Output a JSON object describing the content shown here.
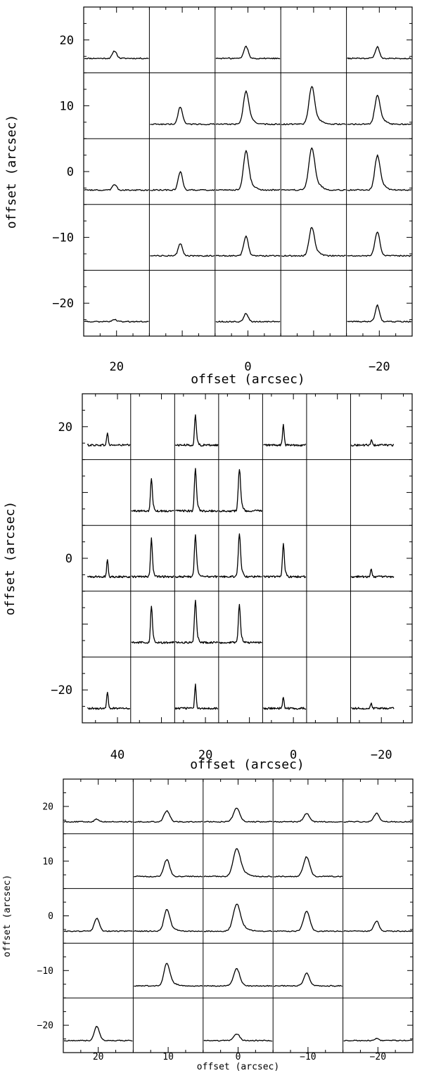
{
  "chart_data": [
    {
      "type": "line",
      "title": "",
      "xlabel": "offset (arcsec)",
      "ylabel": "offset (arcsec)",
      "xlim": [
        25,
        -25
      ],
      "ylim": [
        -25,
        25
      ],
      "xticks": [
        20,
        0,
        -20
      ],
      "yticks": [
        20,
        10,
        0,
        -10,
        -20
      ],
      "col_centers": [
        20,
        10,
        0,
        -10,
        -20
      ],
      "row_centers": [
        20,
        10,
        0,
        -10,
        -20
      ],
      "grid": true,
      "series": [
        {
          "x": 20,
          "y": 20,
          "peak": 0.18,
          "width": 1.3
        },
        {
          "x": 0,
          "y": 20,
          "peak": 0.3,
          "width": 1.3
        },
        {
          "x": -20,
          "y": 20,
          "peak": 0.28,
          "width": 1.3
        },
        {
          "x": 10,
          "y": 10,
          "peak": 0.42,
          "width": 1.4
        },
        {
          "x": 0,
          "y": 10,
          "peak": 0.78,
          "width": 1.6
        },
        {
          "x": -10,
          "y": 10,
          "peak": 0.9,
          "width": 1.7
        },
        {
          "x": -20,
          "y": 10,
          "peak": 0.68,
          "width": 1.6
        },
        {
          "x": 20,
          "y": 0,
          "peak": 0.14,
          "width": 1.2
        },
        {
          "x": 10,
          "y": 0,
          "peak": 0.45,
          "width": 1.3
        },
        {
          "x": 0,
          "y": 0,
          "peak": 0.92,
          "width": 1.6
        },
        {
          "x": -10,
          "y": 0,
          "peak": 1.0,
          "width": 1.8
        },
        {
          "x": -20,
          "y": 0,
          "peak": 0.82,
          "width": 1.6
        },
        {
          "x": 10,
          "y": -10,
          "peak": 0.3,
          "width": 1.3
        },
        {
          "x": 0,
          "y": -10,
          "peak": 0.48,
          "width": 1.4
        },
        {
          "x": -10,
          "y": -10,
          "peak": 0.68,
          "width": 1.6
        },
        {
          "x": -20,
          "y": -10,
          "peak": 0.58,
          "width": 1.5
        },
        {
          "x": 20,
          "y": -20,
          "peak": 0.06,
          "width": 1.2
        },
        {
          "x": 0,
          "y": -20,
          "peak": 0.2,
          "width": 1.3
        },
        {
          "x": -20,
          "y": -20,
          "peak": 0.4,
          "width": 1.3
        }
      ]
    },
    {
      "type": "line",
      "title": "",
      "xlabel": "offset (arcsec)",
      "ylabel": "offset (arcsec)",
      "xlim": [
        48,
        -27
      ],
      "ylim": [
        -25,
        25
      ],
      "xticks": [
        40,
        20,
        0,
        -20
      ],
      "yticks": [
        20,
        0,
        -20
      ],
      "col_centers": [
        42,
        32,
        22,
        12,
        2,
        -8,
        -18
      ],
      "row_centers": [
        20,
        10,
        0,
        -10,
        -20
      ],
      "grid": true,
      "series": [
        {
          "x": 42,
          "y": 20,
          "peak": 0.3,
          "width": 0.7
        },
        {
          "x": 22,
          "y": 20,
          "peak": 0.7,
          "width": 0.8
        },
        {
          "x": 2,
          "y": 20,
          "peak": 0.52,
          "width": 0.7
        },
        {
          "x": -18,
          "y": 20,
          "peak": 0.12,
          "width": 0.7
        },
        {
          "x": 32,
          "y": 10,
          "peak": 0.78,
          "width": 0.8
        },
        {
          "x": 22,
          "y": 10,
          "peak": 1.0,
          "width": 0.9
        },
        {
          "x": 12,
          "y": 10,
          "peak": 1.0,
          "width": 1.0
        },
        {
          "x": 42,
          "y": 0,
          "peak": 0.42,
          "width": 0.7
        },
        {
          "x": 32,
          "y": 0,
          "peak": 0.9,
          "width": 0.8
        },
        {
          "x": 22,
          "y": 0,
          "peak": 1.0,
          "width": 0.9
        },
        {
          "x": 12,
          "y": 0,
          "peak": 1.0,
          "width": 1.0
        },
        {
          "x": 2,
          "y": 0,
          "peak": 0.8,
          "width": 0.8
        },
        {
          "x": -18,
          "y": 0,
          "peak": 0.18,
          "width": 0.7
        },
        {
          "x": 32,
          "y": -10,
          "peak": 0.88,
          "width": 0.8
        },
        {
          "x": 22,
          "y": -10,
          "peak": 1.0,
          "width": 0.9
        },
        {
          "x": 12,
          "y": -10,
          "peak": 0.88,
          "width": 0.9
        },
        {
          "x": 42,
          "y": -20,
          "peak": 0.4,
          "width": 0.7
        },
        {
          "x": 22,
          "y": -20,
          "peak": 0.58,
          "width": 0.7
        },
        {
          "x": 2,
          "y": -20,
          "peak": 0.28,
          "width": 0.7
        },
        {
          "x": -18,
          "y": -20,
          "peak": 0.12,
          "width": 0.7
        }
      ]
    },
    {
      "type": "line",
      "title": "",
      "xlabel": "offset (arcsec)",
      "ylabel": "offset (arcsec)",
      "xlim": [
        25,
        -25
      ],
      "ylim": [
        -25,
        25
      ],
      "xticks": [
        20,
        10,
        0,
        -10,
        -20
      ],
      "yticks": [
        20,
        10,
        0,
        -10,
        -20
      ],
      "col_centers": [
        20,
        10,
        0,
        -10,
        -20
      ],
      "row_centers": [
        20,
        10,
        0,
        -10,
        -20
      ],
      "grid": true,
      "series": [
        {
          "x": 20,
          "y": 20,
          "peak": 0.08,
          "width": 1.2
        },
        {
          "x": 10,
          "y": 20,
          "peak": 0.32,
          "width": 1.6
        },
        {
          "x": 0,
          "y": 20,
          "peak": 0.4,
          "width": 1.8
        },
        {
          "x": -10,
          "y": 20,
          "peak": 0.25,
          "width": 1.6
        },
        {
          "x": -20,
          "y": 20,
          "peak": 0.25,
          "width": 1.4
        },
        {
          "x": 10,
          "y": 10,
          "peak": 0.5,
          "width": 1.6
        },
        {
          "x": 0,
          "y": 10,
          "peak": 0.8,
          "width": 2.0
        },
        {
          "x": -10,
          "y": 10,
          "peak": 0.58,
          "width": 1.8
        },
        {
          "x": 20,
          "y": 0,
          "peak": 0.38,
          "width": 1.4
        },
        {
          "x": 10,
          "y": 0,
          "peak": 0.62,
          "width": 1.6
        },
        {
          "x": 0,
          "y": 0,
          "peak": 0.78,
          "width": 2.0
        },
        {
          "x": -10,
          "y": 0,
          "peak": 0.58,
          "width": 1.8
        },
        {
          "x": -20,
          "y": 0,
          "peak": 0.3,
          "width": 1.4
        },
        {
          "x": 10,
          "y": -10,
          "peak": 0.65,
          "width": 1.6
        },
        {
          "x": 0,
          "y": -10,
          "peak": 0.5,
          "width": 1.8
        },
        {
          "x": -10,
          "y": -10,
          "peak": 0.38,
          "width": 1.6
        },
        {
          "x": 20,
          "y": -20,
          "peak": 0.42,
          "width": 1.4
        },
        {
          "x": 0,
          "y": -20,
          "peak": 0.2,
          "width": 1.6
        },
        {
          "x": -20,
          "y": -20,
          "peak": 0.06,
          "width": 1.2
        }
      ]
    }
  ]
}
